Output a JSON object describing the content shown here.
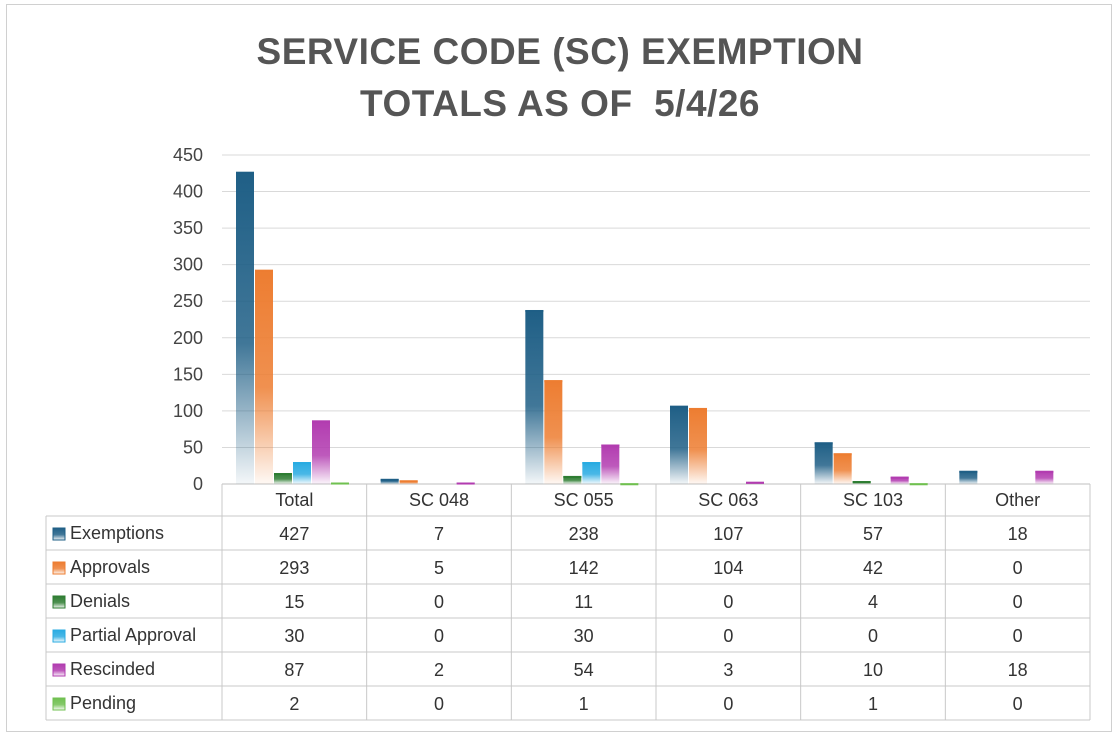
{
  "title_lines": [
    "SERVICE CODE (SC) EXEMPTION",
    "TOTALS AS OF  5/4/26"
  ],
  "chart_data": {
    "type": "bar",
    "title": "SERVICE CODE (SC) EXEMPTION TOTALS AS OF  5/4/26",
    "categories": [
      "Total",
      "SC 048",
      "SC 055",
      "SC 063",
      "SC 103",
      "Other"
    ],
    "ylim": [
      0,
      450
    ],
    "yticks": [
      0,
      50,
      100,
      150,
      200,
      250,
      300,
      350,
      400,
      450
    ],
    "grid": true,
    "legend": "data-table",
    "series": [
      {
        "name": "Exemptions",
        "color": "#1f5f86",
        "values": [
          427,
          7,
          238,
          107,
          57,
          18
        ]
      },
      {
        "name": "Approvals",
        "color": "#ed7d31",
        "values": [
          293,
          5,
          142,
          104,
          42,
          0
        ]
      },
      {
        "name": "Denials",
        "color": "#2e7d32",
        "values": [
          15,
          0,
          11,
          0,
          4,
          0
        ]
      },
      {
        "name": "Partial Approval",
        "color": "#29abe2",
        "values": [
          30,
          0,
          30,
          0,
          0,
          0
        ]
      },
      {
        "name": "Rescinded",
        "color": "#b23cb0",
        "values": [
          87,
          2,
          54,
          3,
          10,
          18
        ]
      },
      {
        "name": "Pending",
        "color": "#70c050",
        "values": [
          2,
          0,
          1,
          0,
          1,
          0
        ]
      }
    ]
  }
}
